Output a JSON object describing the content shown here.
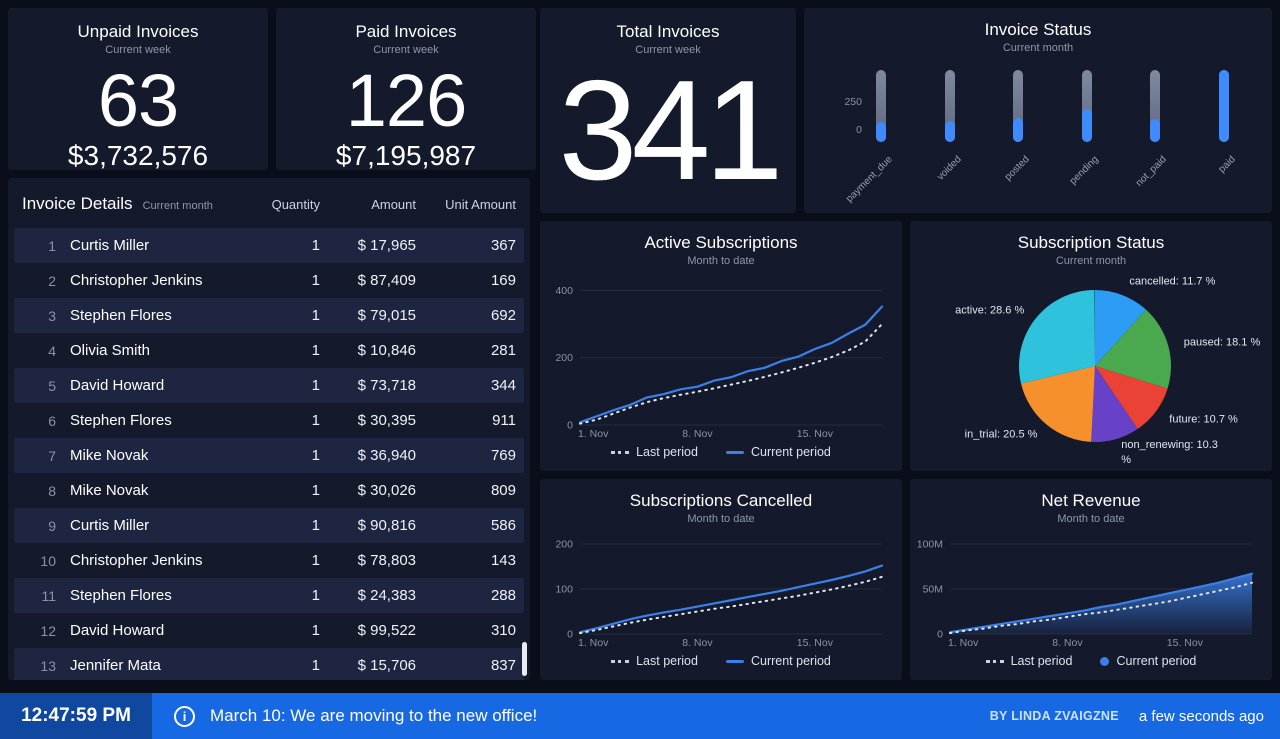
{
  "stats": {
    "unpaid": {
      "title": "Unpaid Invoices",
      "subtitle": "Current week",
      "count": "63",
      "amount": "$3,732,576"
    },
    "paid": {
      "title": "Paid Invoices",
      "subtitle": "Current week",
      "count": "126",
      "amount": "$7,195,987"
    },
    "total": {
      "title": "Total Invoices",
      "subtitle": "Current week",
      "count": "341"
    }
  },
  "invoice_table": {
    "title": "Invoice Details",
    "subtitle": "Current month",
    "columns": [
      "Quantity",
      "Amount",
      "Unit Amount"
    ],
    "rows": [
      {
        "num": "1",
        "name": "Curtis Miller",
        "quantity": "1",
        "amount": "$ 17,965",
        "unit_amount": "367"
      },
      {
        "num": "2",
        "name": "Christopher Jenkins",
        "quantity": "1",
        "amount": "$ 87,409",
        "unit_amount": "169"
      },
      {
        "num": "3",
        "name": "Stephen Flores",
        "quantity": "1",
        "amount": "$ 79,015",
        "unit_amount": "692"
      },
      {
        "num": "4",
        "name": "Olivia Smith",
        "quantity": "1",
        "amount": "$ 10,846",
        "unit_amount": "281"
      },
      {
        "num": "5",
        "name": "David Howard",
        "quantity": "1",
        "amount": "$ 73,718",
        "unit_amount": "344"
      },
      {
        "num": "6",
        "name": "Stephen Flores",
        "quantity": "1",
        "amount": "$ 30,395",
        "unit_amount": "911"
      },
      {
        "num": "7",
        "name": "Mike Novak",
        "quantity": "1",
        "amount": "$ 36,940",
        "unit_amount": "769"
      },
      {
        "num": "8",
        "name": "Mike Novak",
        "quantity": "1",
        "amount": "$ 30,026",
        "unit_amount": "809"
      },
      {
        "num": "9",
        "name": "Curtis Miller",
        "quantity": "1",
        "amount": "$ 90,816",
        "unit_amount": "586"
      },
      {
        "num": "10",
        "name": "Christopher Jenkins",
        "quantity": "1",
        "amount": "$ 78,803",
        "unit_amount": "143"
      },
      {
        "num": "11",
        "name": "Stephen Flores",
        "quantity": "1",
        "amount": "$ 24,383",
        "unit_amount": "288"
      },
      {
        "num": "12",
        "name": "David Howard",
        "quantity": "1",
        "amount": "$ 99,522",
        "unit_amount": "310"
      },
      {
        "num": "13",
        "name": "Jennifer Mata",
        "quantity": "1",
        "amount": "$ 15,706",
        "unit_amount": "837"
      }
    ]
  },
  "chart_data": [
    {
      "id": "invoice_status",
      "type": "bar-gauge",
      "title": "Invoice Status",
      "subtitle": "Current month",
      "y_axis_labels": [
        "250",
        "0"
      ],
      "max": 250,
      "track_color": "#727c92",
      "fill_color": "#3f8bfd",
      "bars": [
        {
          "label": "payment_due",
          "value": 70
        },
        {
          "label": "voided",
          "value": 75
        },
        {
          "label": "posted",
          "value": 85
        },
        {
          "label": "pending",
          "value": 115
        },
        {
          "label": "not_paid",
          "value": 80
        },
        {
          "label": "paid",
          "value": 250
        }
      ]
    },
    {
      "id": "active_subscriptions",
      "type": "line",
      "title": "Active Subscriptions",
      "subtitle": "Month to date",
      "ymax": 440,
      "y_ticks": [
        {
          "v": 0,
          "label": "0"
        },
        {
          "v": 200,
          "label": "200"
        },
        {
          "v": 400,
          "label": "400"
        }
      ],
      "x_ticks": [
        {
          "i": 0,
          "label": "1. Nov"
        },
        {
          "i": 7,
          "label": "8. Nov"
        },
        {
          "i": 14,
          "label": "15. Nov"
        }
      ],
      "series": [
        {
          "name": "Last period",
          "style": "dotted",
          "color": "#dfe6ef",
          "values": [
            4,
            16,
            34,
            52,
            68,
            80,
            90,
            99,
            109,
            120,
            131,
            143,
            156,
            170,
            185,
            202,
            222,
            248,
            300
          ]
        },
        {
          "name": "Current period",
          "style": "solid",
          "color": "#3a80e8",
          "values": [
            8,
            26,
            44,
            60,
            82,
            92,
            106,
            114,
            132,
            142,
            160,
            170,
            190,
            203,
            226,
            244,
            272,
            298,
            352
          ]
        }
      ]
    },
    {
      "id": "subscription_status",
      "type": "pie",
      "title": "Subscription Status",
      "subtitle": "Current month",
      "slices": [
        {
          "label": "cancelled",
          "pct": 11.7,
          "color": "#2d9cf4"
        },
        {
          "label": "paused",
          "pct": 18.1,
          "color": "#4aa84e"
        },
        {
          "label": "future",
          "pct": 10.7,
          "color": "#ea4335"
        },
        {
          "label": "non_renewing",
          "pct": 10.3,
          "color": "#6742c9"
        },
        {
          "label": "in_trial",
          "pct": 20.5,
          "color": "#f6902d"
        },
        {
          "label": "active",
          "pct": 28.6,
          "color": "#2fc2dd"
        }
      ]
    },
    {
      "id": "subscriptions_cancelled",
      "type": "line",
      "title": "Subscriptions Cancelled",
      "subtitle": "Month to date",
      "ymax": 220,
      "y_ticks": [
        {
          "v": 0,
          "label": "0"
        },
        {
          "v": 100,
          "label": "100"
        },
        {
          "v": 200,
          "label": "200"
        }
      ],
      "x_ticks": [
        {
          "i": 0,
          "label": "1. Nov"
        },
        {
          "i": 7,
          "label": "8. Nov"
        },
        {
          "i": 14,
          "label": "15. Nov"
        }
      ],
      "series": [
        {
          "name": "Last period",
          "style": "dotted",
          "color": "#dfe6ef",
          "values": [
            2,
            9,
            17,
            25,
            32,
            38,
            44,
            50,
            56,
            61,
            67,
            73,
            79,
            85,
            92,
            99,
            107,
            116,
            127
          ]
        },
        {
          "name": "Current period",
          "style": "solid",
          "color": "#3a80e8",
          "values": [
            4,
            13,
            23,
            33,
            41,
            48,
            54,
            61,
            68,
            75,
            82,
            89,
            96,
            104,
            112,
            120,
            129,
            139,
            152
          ]
        }
      ]
    },
    {
      "id": "net_revenue",
      "type": "area",
      "title": "Net Revenue",
      "subtitle": "Month to date",
      "ymax": 110,
      "unit": "millions",
      "y_ticks": [
        {
          "v": 0,
          "label": "0"
        },
        {
          "v": 50,
          "label": "50M"
        },
        {
          "v": 100,
          "label": "100M"
        }
      ],
      "x_ticks": [
        {
          "i": 0,
          "label": "1. Nov"
        },
        {
          "i": 7,
          "label": "8. Nov"
        },
        {
          "i": 14,
          "label": "15. Nov"
        }
      ],
      "series": [
        {
          "name": "Last period",
          "style": "dotted",
          "color": "#dfe6ef",
          "values": [
            1,
            4,
            6,
            9,
            11,
            14,
            16,
            19,
            22,
            24,
            27,
            30,
            33,
            36,
            40,
            44,
            48,
            52,
            57
          ]
        },
        {
          "name": "Current period",
          "style": "area",
          "color": "#3a80e8",
          "values": [
            2,
            5,
            8,
            11,
            14,
            17,
            20,
            23,
            26,
            30,
            33,
            37,
            41,
            45,
            49,
            53,
            57,
            62,
            67
          ]
        }
      ]
    }
  ],
  "footer": {
    "time": "12:47:59 PM",
    "message": "March 10: We are moving to the new office!",
    "byline": "BY LINDA ZVAIGZNE",
    "ago": "a few seconds ago"
  },
  "icons": {
    "info": "i"
  },
  "colors": {
    "accent_blue": "#3a80e8",
    "banner_blue": "#1769e3",
    "banner_dark_blue": "#10489f",
    "panel_bg": "#141a2c",
    "page_bg": "#0a0e1a",
    "stripe": "#1d2540"
  }
}
